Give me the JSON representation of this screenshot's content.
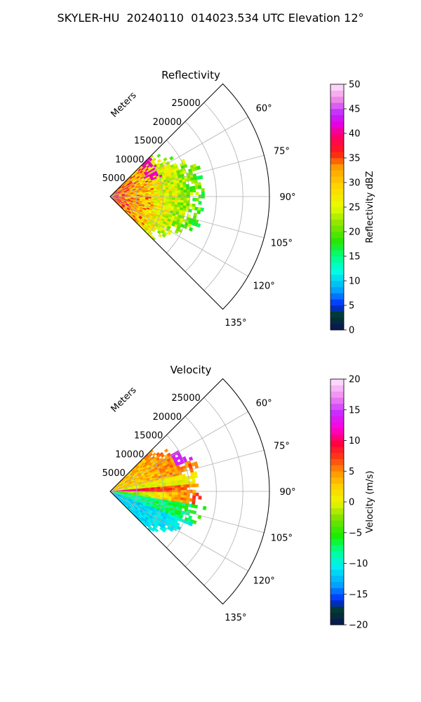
{
  "figure_title": "SKYLER-HU  20240110  014023.534 UTC Elevation 12°",
  "chart_data": [
    {
      "type": "heatmap",
      "subtype": "radar-ppi-sector",
      "title": "Reflectivity",
      "range_label": "Meters",
      "range_ticks": [
        5000,
        10000,
        15000,
        20000,
        25000
      ],
      "range_max": 30000,
      "azimuth_ticks": [
        "60°",
        "75°",
        "90°",
        "105°",
        "120°",
        "135°"
      ],
      "azimuth_range_deg": [
        45,
        135
      ],
      "colorbar": {
        "label": "Reflectivity dBZ",
        "min": 0,
        "max": 50,
        "ticks": [
          "0",
          "5",
          "10",
          "15",
          "20",
          "25",
          "30",
          "35",
          "40",
          "45",
          "50"
        ]
      },
      "field_description": {
        "max_echo_range_m": 17500,
        "dominant_values_near_radar_dBZ": [
          30,
          38
        ],
        "dominant_values_far_dBZ": [
          18,
          24
        ]
      }
    },
    {
      "type": "heatmap",
      "subtype": "radar-ppi-sector",
      "title": "Velocity",
      "range_label": "Meters",
      "range_ticks": [
        5000,
        10000,
        15000,
        20000,
        25000
      ],
      "range_max": 30000,
      "azimuth_ticks": [
        "60°",
        "75°",
        "90°",
        "105°",
        "120°",
        "135°"
      ],
      "azimuth_range_deg": [
        45,
        135
      ],
      "colorbar": {
        "label": "Velocity (m/s)",
        "min": -20,
        "max": 20,
        "ticks": [
          "−20",
          "−15",
          "−10",
          "−5",
          "0",
          "5",
          "10",
          "15",
          "20"
        ]
      },
      "field_description": {
        "max_echo_range_m": 17500
      }
    }
  ]
}
